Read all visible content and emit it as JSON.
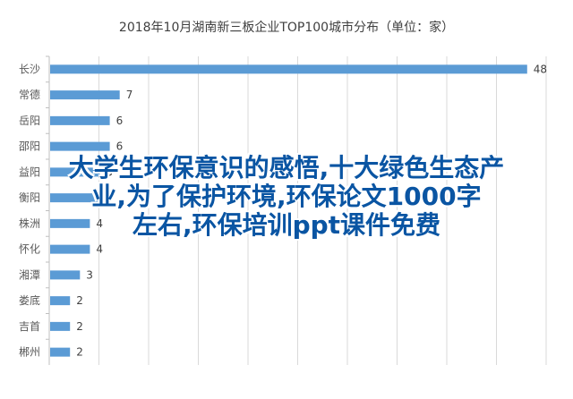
{
  "chart_data": {
    "type": "bar",
    "orientation": "horizontal",
    "title": "2018年10月湖南新三板企业TOP100城市分布（单位：家）",
    "categories": [
      "长沙",
      "常德",
      "岳阳",
      "邵阳",
      "益阳",
      "衡阳",
      "株洲",
      "怀化",
      "湘潭",
      "娄底",
      "吉首",
      "郴州"
    ],
    "values": [
      48,
      7,
      6,
      6,
      5,
      5,
      4,
      4,
      3,
      2,
      2,
      2
    ],
    "xlim": [
      0,
      50
    ],
    "grid": true,
    "bar_color": "#5b9bd5",
    "data_labels": true
  },
  "overlay": {
    "lines": [
      "大学生环保意识的感悟,十大绿色生态产",
      "业,为了保护环境,环保论文1000字",
      "左右,环保培训ppt课件免费"
    ],
    "color": "#0a55a3"
  }
}
